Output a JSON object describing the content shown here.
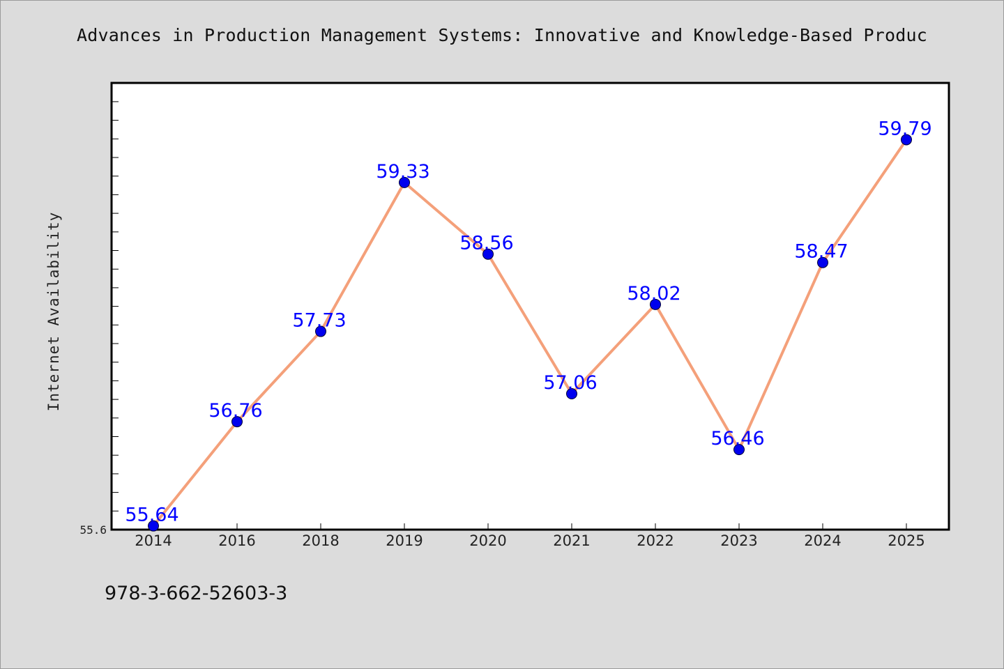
{
  "chart_data": {
    "type": "line",
    "title": "Advances in Production Management Systems: Innovative and Knowledge-Based Produc",
    "xlabel": "",
    "ylabel": "Internet Availability",
    "categories": [
      "2014",
      "2016",
      "2018",
      "2019",
      "2020",
      "2021",
      "2022",
      "2023",
      "2024",
      "2025"
    ],
    "series": [
      {
        "name": "",
        "values": [
          55.64,
          56.76,
          57.73,
          59.33,
          58.56,
          57.06,
          58.02,
          56.46,
          58.47,
          59.79
        ],
        "labels": [
          "55.64",
          "56.76",
          "57.73",
          "59.33",
          "58.56",
          "57.06",
          "58.02",
          "56.46",
          "58.47",
          "59.79"
        ]
      }
    ],
    "yticks": [
      "55.6"
    ],
    "ylim": [
      55.6,
      60.4
    ],
    "grid": false,
    "line_color": "#f4a07a",
    "marker_color": "#0000ee",
    "label_color": "#0000ff"
  },
  "footer": {
    "isbn": "978-3-662-52603-3"
  }
}
